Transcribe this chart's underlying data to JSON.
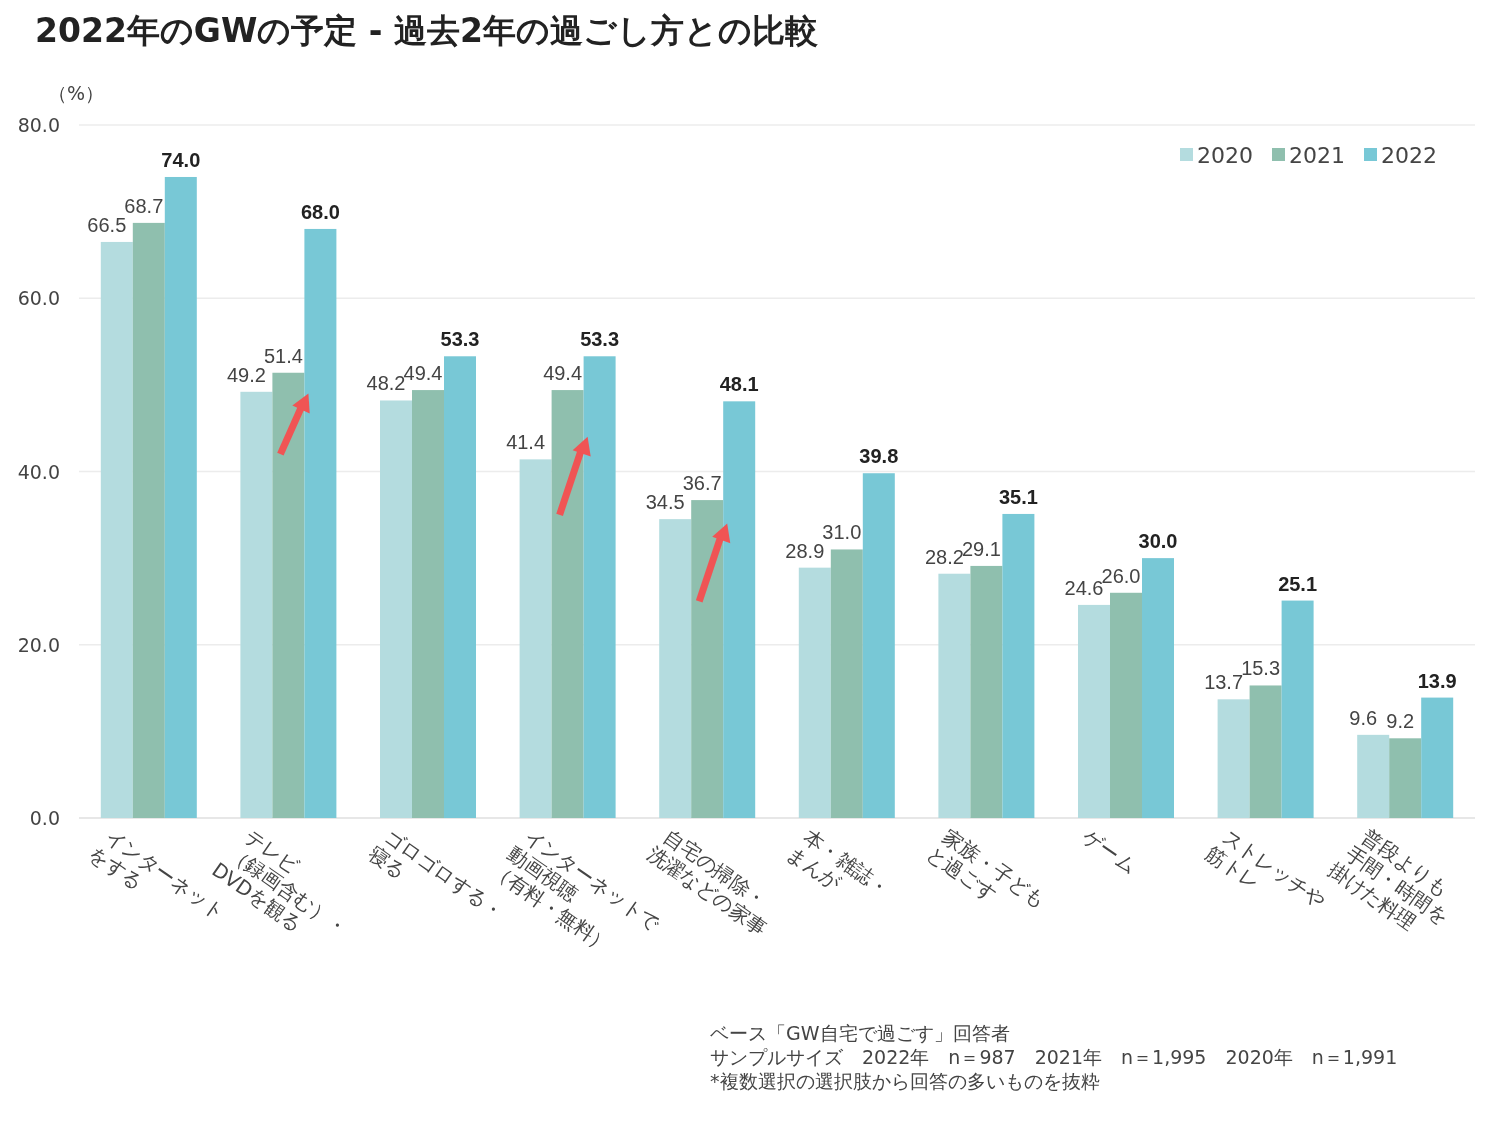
{
  "chart_data": {
    "type": "bar",
    "title": "2022年のGWの予定 - 過去2年の過ごし方との比較",
    "ylabel": "（%）",
    "categories": [
      "インターネット\nをする",
      "テレビ\n（録画含む）・\nDVDを観る",
      "ゴロゴロする・\n寝る",
      "インターネットで\n動画視聴\n（有料・無料）",
      "自宅の掃除・\n洗濯などの家事",
      "本・雑誌・\nまんが",
      "家族・子ども\nと過ごす",
      "ゲーム",
      "ストレッチや\n筋トレ",
      "普段よりも\n手間・時間を\n掛けた料理"
    ],
    "series": [
      {
        "name": "2020",
        "color": "#b4dcdf",
        "values": [
          66.5,
          49.2,
          48.2,
          41.4,
          34.5,
          28.9,
          28.2,
          24.6,
          13.7,
          9.6
        ],
        "value_labels": [
          "66.5",
          "49.2",
          "48.2",
          "41.4",
          "34.5",
          "28.9",
          "28.2",
          "24.6",
          "13.7",
          "9.6"
        ]
      },
      {
        "name": "2021",
        "color": "#8fbfae",
        "values": [
          68.7,
          51.4,
          49.4,
          49.4,
          36.7,
          31.0,
          29.1,
          26.0,
          15.3,
          9.2
        ],
        "value_labels": [
          "68.7",
          "51.4",
          "49.4",
          "49.4",
          "36.7",
          "31.0",
          "29.1",
          "26.0",
          "15.3",
          "9.2"
        ]
      },
      {
        "name": "2022",
        "color": "#78c8d6",
        "values": [
          74.0,
          68.0,
          53.3,
          53.3,
          48.1,
          39.8,
          35.1,
          30.0,
          25.1,
          13.9
        ],
        "value_labels": [
          "74.0",
          "68.0",
          "53.3",
          "53.3",
          "48.1",
          "39.8",
          "35.1",
          "30.0",
          "25.1",
          "13.9"
        ]
      }
    ],
    "ylim": [
      0,
      80
    ],
    "yticks": [
      {
        "value": 0,
        "label": "0.0"
      },
      {
        "value": 20,
        "label": "20.0"
      },
      {
        "value": 40,
        "label": "40.0"
      },
      {
        "value": 60,
        "label": "60.0"
      },
      {
        "value": 80,
        "label": "80.0"
      }
    ],
    "grid": "y",
    "legend": "top right",
    "annotations": [
      "ベース「GW自宅で過ごす」回答者",
      "サンプルサイズ　2022年　n＝987　2021年　n＝1,995　2020年　n＝1,991",
      "*複数選択の選択肢から回答の多いものを抜粋"
    ]
  }
}
